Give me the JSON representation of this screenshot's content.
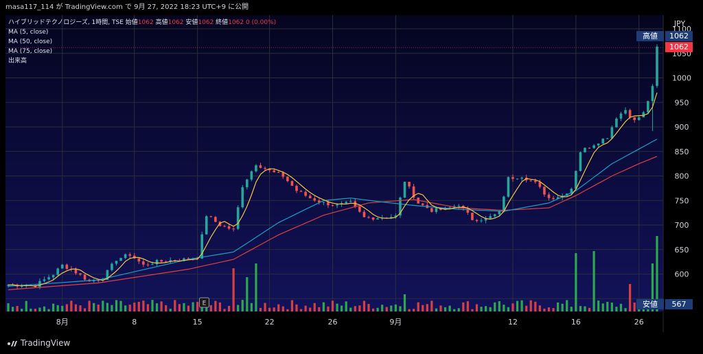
{
  "header": {
    "publish_text": "masa117_114 が TradingView.com で 9月 27, 2022 18:23 UTC+9 に公開"
  },
  "legend": {
    "title": "ハイブリッドテクノロジーズ, 1時間, TSE",
    "open_label": "始値",
    "open": "1062",
    "high_label": "高値",
    "high": "1062",
    "low_label": "安値",
    "low": "1062",
    "close_label": "終値",
    "close": "1062",
    "change": "0 (0.00%)",
    "ma5": "MA (5, close)",
    "ma50": "MA (50, close)",
    "ma75": "MA (75, close)",
    "volume": "出来高"
  },
  "price_axis": {
    "currency": "JPY",
    "tag_high_label": "高値",
    "tag_high_value": "1062",
    "tag_last_value": "1062",
    "tag_low_label": "安値",
    "tag_low_value": "567"
  },
  "footer": {
    "brand": "TradingView"
  },
  "event_marker": "E",
  "colors": {
    "background": "#0b0b3b",
    "up": "#26a69a",
    "down": "#ef5350",
    "ma5": "#f5c542",
    "ma50": "#1ca0c8",
    "ma75": "#e04040",
    "vol_up": "#2da84a",
    "vol_down": "#d84040",
    "tag_blue": "#1e3d78"
  },
  "chart_data": {
    "type": "candlestick",
    "symbol": "ハイブリッドテクノロジーズ",
    "interval": "1時間",
    "exchange": "TSE",
    "ylim": [
      540,
      1100
    ],
    "y_ticks": [
      600,
      650,
      700,
      750,
      800,
      850,
      900,
      950,
      1000,
      1050,
      1100
    ],
    "x_labels": [
      "8月",
      "8",
      "15",
      "22",
      "26",
      "9月",
      "12",
      "16",
      "26"
    ],
    "x_label_index": [
      12,
      28,
      42,
      58,
      72,
      86,
      112,
      126,
      140
    ],
    "n_bars": 145,
    "close_anchors": [
      [
        0,
        578
      ],
      [
        6,
        577
      ],
      [
        10,
        600
      ],
      [
        12,
        618
      ],
      [
        14,
        610
      ],
      [
        18,
        585
      ],
      [
        21,
        592
      ],
      [
        24,
        630
      ],
      [
        27,
        640
      ],
      [
        30,
        618
      ],
      [
        33,
        625
      ],
      [
        36,
        628
      ],
      [
        39,
        630
      ],
      [
        42,
        635
      ],
      [
        44,
        720
      ],
      [
        47,
        700
      ],
      [
        50,
        690
      ],
      [
        52,
        780
      ],
      [
        55,
        825
      ],
      [
        58,
        810
      ],
      [
        61,
        800
      ],
      [
        64,
        770
      ],
      [
        67,
        755
      ],
      [
        70,
        745
      ],
      [
        73,
        740
      ],
      [
        76,
        745
      ],
      [
        79,
        715
      ],
      [
        82,
        715
      ],
      [
        86,
        718
      ],
      [
        88,
        790
      ],
      [
        91,
        745
      ],
      [
        94,
        730
      ],
      [
        97,
        732
      ],
      [
        100,
        742
      ],
      [
        103,
        712
      ],
      [
        106,
        712
      ],
      [
        109,
        725
      ],
      [
        111,
        795
      ],
      [
        114,
        800
      ],
      [
        117,
        785
      ],
      [
        120,
        755
      ],
      [
        123,
        760
      ],
      [
        125,
        775
      ],
      [
        127,
        850
      ],
      [
        130,
        865
      ],
      [
        133,
        880
      ],
      [
        135,
        920
      ],
      [
        137,
        935
      ],
      [
        139,
        912
      ],
      [
        141,
        928
      ],
      [
        143,
        980
      ],
      [
        144,
        1062
      ]
    ],
    "ma50_anchors": [
      [
        0,
        575
      ],
      [
        20,
        588
      ],
      [
        40,
        630
      ],
      [
        50,
        645
      ],
      [
        60,
        705
      ],
      [
        70,
        750
      ],
      [
        76,
        755
      ],
      [
        82,
        748
      ],
      [
        90,
        740
      ],
      [
        100,
        732
      ],
      [
        110,
        728
      ],
      [
        120,
        745
      ],
      [
        126,
        770
      ],
      [
        134,
        825
      ],
      [
        140,
        855
      ],
      [
        144,
        875
      ]
    ],
    "ma75_anchors": [
      [
        0,
        568
      ],
      [
        20,
        582
      ],
      [
        40,
        610
      ],
      [
        50,
        630
      ],
      [
        60,
        680
      ],
      [
        70,
        720
      ],
      [
        80,
        745
      ],
      [
        90,
        752
      ],
      [
        100,
        735
      ],
      [
        110,
        730
      ],
      [
        120,
        735
      ],
      [
        126,
        760
      ],
      [
        134,
        800
      ],
      [
        140,
        825
      ],
      [
        144,
        840
      ]
    ],
    "volume_spikes": [
      [
        44,
        18
      ],
      [
        50,
        63
      ],
      [
        53,
        50
      ],
      [
        55,
        70
      ],
      [
        88,
        25
      ],
      [
        109,
        15
      ],
      [
        126,
        85
      ],
      [
        130,
        88
      ],
      [
        138,
        40
      ],
      [
        143,
        70
      ],
      [
        144,
        110
      ]
    ]
  }
}
